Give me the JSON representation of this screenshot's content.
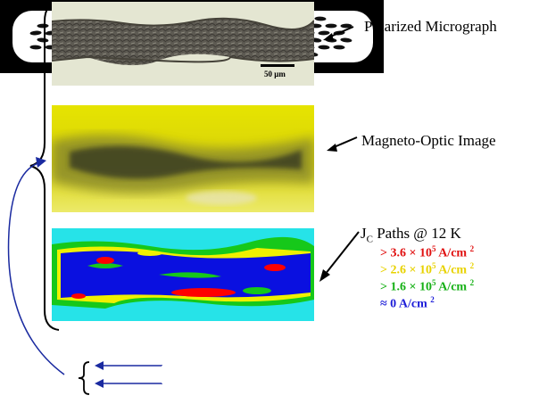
{
  "labels": {
    "polarized": "Polarized Micrograph",
    "magneto_optic": "Magneto-Optic Image",
    "jc_paths": "J",
    "jc_subscript": "C",
    "jc_paths_suffix": " Paths @ 12 K"
  },
  "scale_bar": "50 μm",
  "legend": [
    {
      "prefix": "> 3.6  × 10",
      "exp": "5",
      "unit": " A/cm",
      "unit_exp": "2",
      "color": "#e01010"
    },
    {
      "prefix": "> 2.6  × 10",
      "exp": "5",
      "unit": " A/cm",
      "unit_exp": "2",
      "color": "#e8d200"
    },
    {
      "prefix": "> 1.6  × 10",
      "exp": "5",
      "unit": " A/cm",
      "unit_exp": "2",
      "color": "#16b016"
    },
    {
      "prefix": "≈ 0  A/cm",
      "exp": "",
      "unit": "",
      "unit_exp": "2",
      "color": "#1c1cd8"
    }
  ],
  "colors": {
    "jc_high": "#ff0000",
    "jc_mid": "#ffff00",
    "jc_low": "#00d000",
    "jc_zero": "#0000e0",
    "background_cyan": "#26e3e8",
    "connector_blue": "#1a2aa0"
  }
}
